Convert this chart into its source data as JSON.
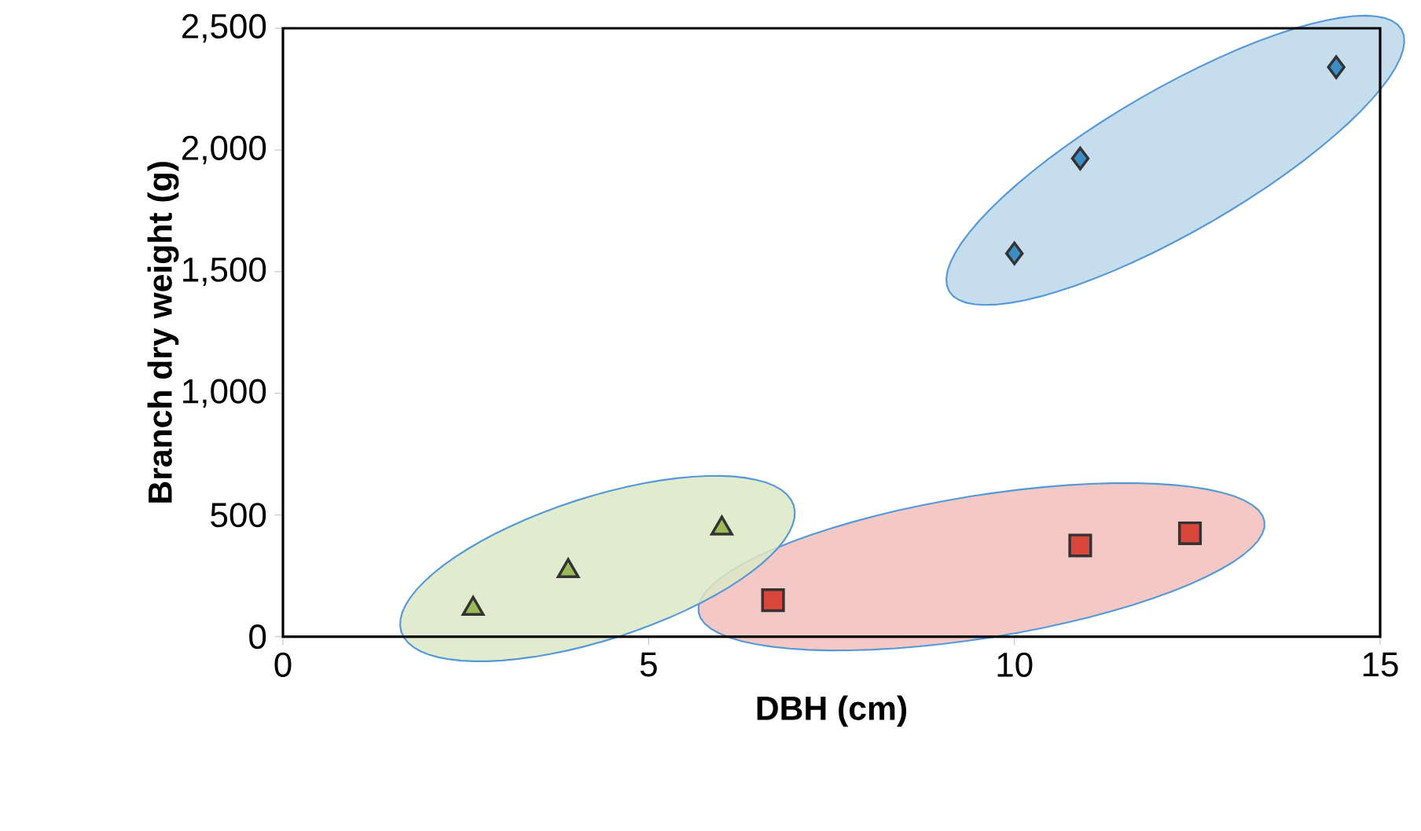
{
  "chart_data": {
    "type": "scatter",
    "xlabel": "DBH (cm)",
    "ylabel": "Branch dry weight (g)",
    "xlim": [
      0,
      15
    ],
    "xticks": [
      0,
      5,
      10,
      15
    ],
    "ylim": [
      0,
      2500
    ],
    "yticks": [
      0,
      500,
      {
        "value": 1000,
        "label": "1,000"
      },
      {
        "value": 1500,
        "label": "1,500"
      },
      {
        "value": 2000,
        "label": "2,000"
      },
      {
        "value": 2500,
        "label": "2,500"
      }
    ],
    "grid": false,
    "series": [
      {
        "color": "#3c8dc4",
        "marker": "diamond",
        "x": [
          10,
          10.9,
          14.4
        ],
        "values": [
          1575,
          1965,
          2340
        ]
      },
      {
        "color": "#d9473c",
        "marker": "square",
        "x": [
          6.7,
          10.9,
          12.4
        ],
        "values": [
          150,
          375,
          425
        ]
      },
      {
        "color": "#9bbb59",
        "marker": "triangle",
        "x": [
          2.6,
          3.9,
          6
        ],
        "values": [
          115,
          270,
          445
        ]
      }
    ]
  }
}
